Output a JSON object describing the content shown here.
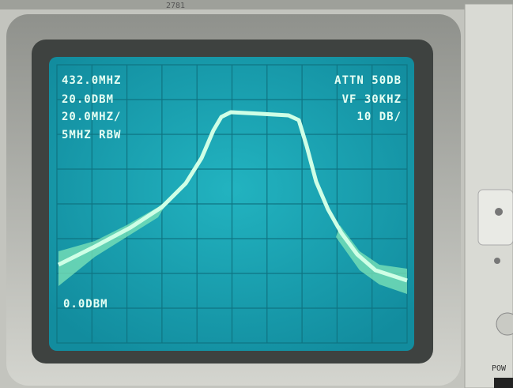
{
  "bezel": {
    "model": "2781"
  },
  "screen": {
    "top_left": [
      "432.0MHZ",
      "20.0DBM",
      "20.0MHZ/",
      "5MHZ RBW"
    ],
    "top_right": [
      "ATTN 50DB",
      "VF 30KHZ",
      "10 DB/"
    ],
    "reference": "0.0DBM"
  },
  "panel": {
    "label": "POW"
  }
}
